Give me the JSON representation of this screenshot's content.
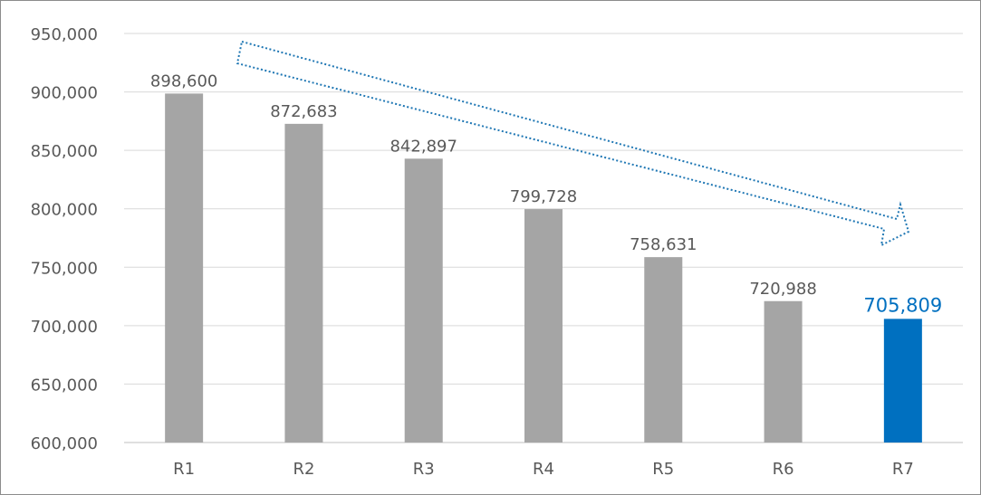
{
  "chart_data": {
    "type": "bar",
    "categories": [
      "R1",
      "R2",
      "R3",
      "R4",
      "R5",
      "R6",
      "R7"
    ],
    "values": [
      898600,
      872683,
      842897,
      799728,
      758631,
      720988,
      705809
    ],
    "data_labels": [
      "898,600",
      "872,683",
      "842,897",
      "799,728",
      "758,631",
      "720,988",
      "705,809"
    ],
    "ylim": [
      600000,
      950000
    ],
    "yticks": [
      "600,000",
      "650,000",
      "700,000",
      "750,000",
      "800,000",
      "850,000",
      "900,000",
      "950,000"
    ],
    "grid": true,
    "highlight_index": 6,
    "colors": {
      "bar": "#a5a5a5",
      "highlight": "#0070c0",
      "grid": "#d9d9d9",
      "trend_arrow": "#1f77b4"
    },
    "annotation": "dotted-arrow-downward-trend"
  }
}
